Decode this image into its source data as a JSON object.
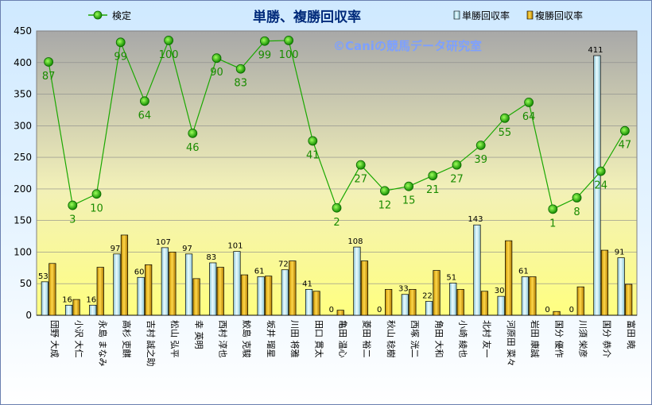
{
  "chart_data": {
    "type": "bar",
    "title": "単勝、複勝回収率",
    "watermark": "©Caniの競馬データ研究室",
    "ylim": [
      0,
      450
    ],
    "yticks": [
      0,
      50,
      100,
      150,
      200,
      250,
      300,
      350,
      400,
      450
    ],
    "legend_position": "top",
    "grid": true,
    "categories": [
      "団野 大成",
      "小沢 大仁",
      "永島 まなみ",
      "高杉 吏麒",
      "吉村 誠之助",
      "松山 弘平",
      "幸 英明",
      "西村 淳也",
      "鮫島 克駿",
      "坂井 瑠星",
      "川田 将雅",
      "田口 貫太",
      "亀田 温心",
      "菱田 裕二",
      "秋山 稔樹",
      "西塚 洸二",
      "角田 大和",
      "小崎 綾也",
      "北村 友一",
      "河原田 菜々",
      "岩田 康誠",
      "国分 優作",
      "川須 栄彦",
      "国分 恭介",
      "富田 暁"
    ],
    "series": [
      {
        "name": "単勝回収率",
        "type": "bar",
        "color": "#bfe8f0",
        "values": [
          53,
          16,
          16,
          97,
          60,
          107,
          97,
          83,
          101,
          61,
          72,
          41,
          0,
          108,
          0,
          33,
          22,
          51,
          143,
          30,
          61,
          0,
          0,
          411,
          91
        ]
      },
      {
        "name": "複勝回収率",
        "type": "bar",
        "color": "#e8b400",
        "values": [
          82,
          25,
          76,
          127,
          80,
          100,
          58,
          76,
          64,
          62,
          86,
          38,
          8,
          86,
          41,
          41,
          71,
          41,
          38,
          118,
          61,
          6,
          45,
          103,
          49
        ]
      },
      {
        "name": "検定",
        "type": "line",
        "color": "#1aa800",
        "values": [
          401,
          174,
          192,
          432,
          339,
          435,
          288,
          407,
          390,
          434,
          435,
          276,
          170,
          238,
          197,
          204,
          221,
          238,
          269,
          312,
          337,
          168,
          186,
          228,
          292
        ],
        "labels": [
          87,
          3,
          10,
          99,
          64,
          100,
          46,
          90,
          83,
          99,
          100,
          41,
          2,
          27,
          12,
          15,
          21,
          27,
          39,
          55,
          64,
          1,
          8,
          24,
          47
        ]
      }
    ]
  }
}
